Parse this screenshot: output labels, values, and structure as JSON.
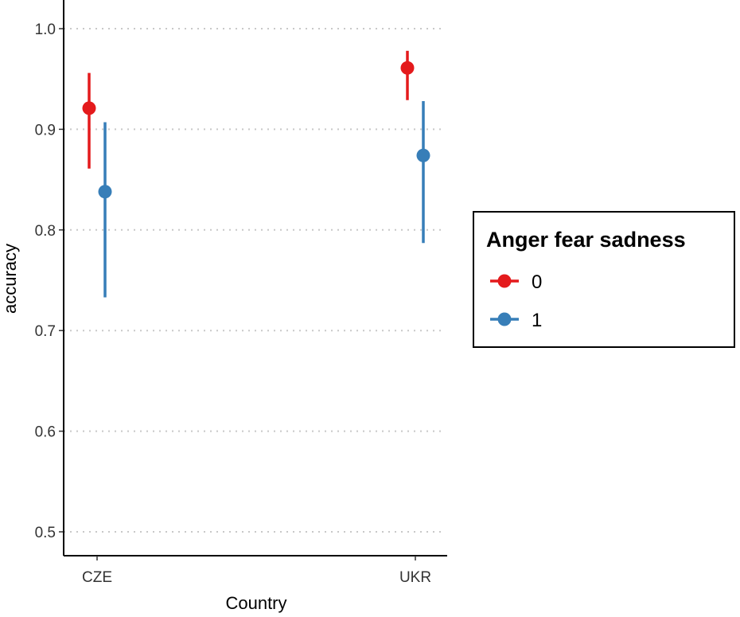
{
  "chart_data": {
    "type": "scatter",
    "subtype": "pointrange",
    "xlabel": "Country",
    "ylabel": "accuracy",
    "categories": [
      "CZE",
      "UKR"
    ],
    "ylim": [
      0.48,
      1.03
    ],
    "yticks": [
      0.5,
      0.6,
      0.7,
      0.8,
      0.9,
      1.0
    ],
    "ytick_labels": [
      "0.5",
      "0.6",
      "0.7",
      "0.8",
      "0.9",
      "1.0"
    ],
    "grid": "horizontal dotted",
    "legend": {
      "title": "Anger fear sadness",
      "position": "right",
      "entries": [
        {
          "label": "0",
          "color": "#E41A1C"
        },
        {
          "label": "1",
          "color": "#377EB8"
        }
      ]
    },
    "series": [
      {
        "name": "0",
        "color": "#E41A1C",
        "values": [
          0.921,
          0.961
        ],
        "lower": [
          0.861,
          0.929
        ],
        "upper": [
          0.956,
          0.978
        ]
      },
      {
        "name": "1",
        "color": "#377EB8",
        "values": [
          0.838,
          0.874
        ],
        "lower": [
          0.733,
          0.787
        ],
        "upper": [
          0.907,
          0.928
        ]
      }
    ]
  }
}
